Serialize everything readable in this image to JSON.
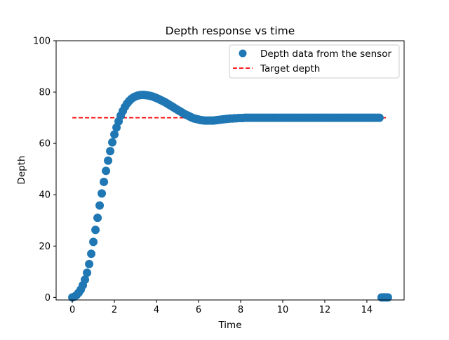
{
  "chart_data": {
    "type": "scatter",
    "title": "Depth response vs time",
    "xlabel": "Time",
    "ylabel": "Depth",
    "xlim": [
      -0.77,
      15.77
    ],
    "ylim": [
      -1,
      100
    ],
    "xticks": [
      0,
      2,
      4,
      6,
      8,
      10,
      12,
      14
    ],
    "yticks": [
      0,
      20,
      40,
      60,
      80,
      100
    ],
    "grid": false,
    "legend_position": "top-right",
    "series": [
      {
        "name": "Depth data from the sensor",
        "kind": "scatter",
        "color": "#1f77b4",
        "marker": "circle",
        "x": [
          0.0,
          0.1,
          0.2,
          0.3,
          0.4,
          0.5,
          0.6,
          0.7,
          0.8,
          0.9,
          1.0,
          1.1,
          1.2,
          1.3,
          1.4,
          1.5,
          1.6,
          1.7,
          1.8,
          1.9,
          2.0,
          2.1,
          2.2,
          2.3,
          2.4,
          2.5,
          2.6,
          2.7,
          2.8,
          2.9,
          3.0,
          3.1,
          3.2,
          3.3,
          3.4,
          3.5,
          3.6,
          3.7,
          3.8,
          3.9,
          4.0,
          4.1,
          4.2,
          4.3,
          4.4,
          4.5,
          4.6,
          4.7,
          4.8,
          4.9,
          5.0,
          5.1,
          5.2,
          5.3,
          5.4,
          5.5,
          5.6,
          5.7,
          5.8,
          5.9,
          6.0,
          6.1,
          6.2,
          6.3,
          6.4,
          6.5,
          6.6,
          6.7,
          6.8,
          6.9,
          7.0,
          7.1,
          7.2,
          7.3,
          7.4,
          7.5,
          7.6,
          7.7,
          7.8,
          7.9,
          8.0,
          8.1,
          8.2,
          8.3,
          8.4,
          8.5,
          8.6,
          8.7,
          8.8,
          8.9,
          9.0,
          9.1,
          9.2,
          9.3,
          9.4,
          9.5,
          9.6,
          9.7,
          9.8,
          9.9,
          10.0,
          10.1,
          10.2,
          10.3,
          10.4,
          10.5,
          10.6,
          10.7,
          10.8,
          10.9,
          11.0,
          11.1,
          11.2,
          11.3,
          11.4,
          11.5,
          11.6,
          11.7,
          11.8,
          11.9,
          12.0,
          12.1,
          12.2,
          12.3,
          12.4,
          12.5,
          12.6,
          12.7,
          12.8,
          12.9,
          13.0,
          13.1,
          13.2,
          13.3,
          13.4,
          13.5,
          13.6,
          13.7,
          13.8,
          13.9,
          14.0,
          14.1,
          14.2,
          14.3,
          14.4,
          14.5,
          14.6,
          14.7,
          14.8,
          14.9,
          15.0
        ],
        "y": [
          0.0,
          0.3,
          0.9,
          1.8,
          3.0,
          4.7,
          6.9,
          9.6,
          13.0,
          17.0,
          21.6,
          26.3,
          31.0,
          35.8,
          40.5,
          45.0,
          49.3,
          53.3,
          57.0,
          60.4,
          63.5,
          66.2,
          68.6,
          70.8,
          72.6,
          74.2,
          75.5,
          76.5,
          77.3,
          77.9,
          78.3,
          78.6,
          78.8,
          78.9,
          78.9,
          78.8,
          78.7,
          78.5,
          78.3,
          78.0,
          77.7,
          77.3,
          76.9,
          76.5,
          76.1,
          75.6,
          75.1,
          74.6,
          74.1,
          73.6,
          73.1,
          72.6,
          72.1,
          71.6,
          71.2,
          70.8,
          70.4,
          70.0,
          69.7,
          69.5,
          69.3,
          69.1,
          69.0,
          68.9,
          68.9,
          68.9,
          68.9,
          68.9,
          69.0,
          69.1,
          69.2,
          69.3,
          69.4,
          69.5,
          69.6,
          69.7,
          69.7,
          69.8,
          69.8,
          69.9,
          69.9,
          69.9,
          70.0,
          70.0,
          70.0,
          70.0,
          70.0,
          70.0,
          70.0,
          70.0,
          70.0,
          70.0,
          70.0,
          70.0,
          70.0,
          70.0,
          70.0,
          70.0,
          70.0,
          70.0,
          70.0,
          70.0,
          70.0,
          70.0,
          70.0,
          70.0,
          70.0,
          70.0,
          70.0,
          70.0,
          70.0,
          70.0,
          70.0,
          70.0,
          70.0,
          70.0,
          70.0,
          70.0,
          70.0,
          70.0,
          70.0,
          70.0,
          70.0,
          70.0,
          70.0,
          70.0,
          70.0,
          70.0,
          70.0,
          70.0,
          70.0,
          70.0,
          70.0,
          70.0,
          70.0,
          70.0,
          70.0,
          70.0,
          70.0,
          70.0,
          70.0,
          70.0,
          70.0,
          70.0,
          70.0,
          70.0,
          70.0,
          0.0,
          0.0,
          0.0,
          0.0
        ]
      },
      {
        "name": "Target depth",
        "kind": "line",
        "style": "dashed",
        "color": "#ff0000",
        "x": [
          0,
          15
        ],
        "y": [
          70,
          70
        ]
      }
    ]
  }
}
